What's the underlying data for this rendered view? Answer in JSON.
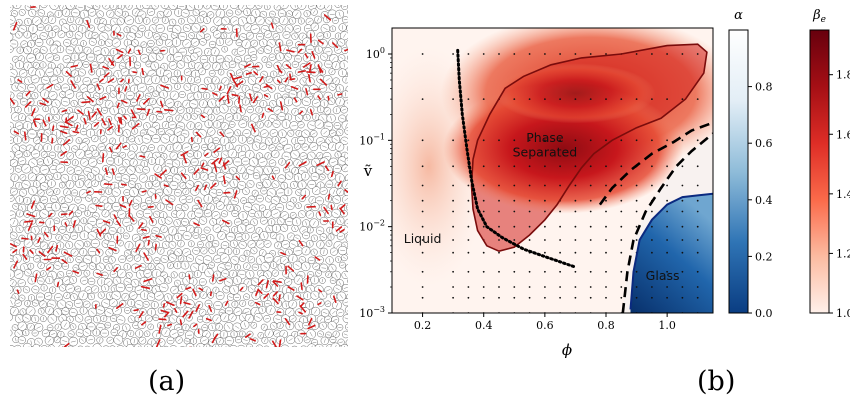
{
  "panel_labels": {
    "a": "(a)",
    "b": "(b)"
  },
  "chart_data": [
    {
      "type": "scatter",
      "panel": "(a)",
      "title": "",
      "description_kind": "particle-packing-snapshot",
      "colors": {
        "particle_edge": "#555555",
        "particle_fill": "#ffffff",
        "bond": "#d11a1a"
      }
    },
    {
      "type": "heatmap",
      "panel": "(b)",
      "title": "",
      "xlabel": "ϕ",
      "ylabel": "ṽ",
      "xlim": [
        0.1,
        1.15
      ],
      "ylim": [
        0.001,
        2
      ],
      "yscale": "log",
      "x_ticks": [
        {
          "value": 0.2,
          "label": "0.2"
        },
        {
          "value": 0.4,
          "label": "0.4"
        },
        {
          "value": 0.6,
          "label": "0.6"
        },
        {
          "value": 0.8,
          "label": "0.8"
        },
        {
          "value": 1.0,
          "label": "1.0"
        }
      ],
      "y_ticks": [
        {
          "value": 0.001,
          "base": "10",
          "exp": "−3"
        },
        {
          "value": 0.01,
          "base": "10",
          "exp": "−2"
        },
        {
          "value": 0.1,
          "base": "10",
          "exp": "−1"
        },
        {
          "value": 1,
          "base": "10",
          "exp": "0"
        }
      ],
      "regions": [
        {
          "label_lines": [
            "Phase",
            "Separated"
          ],
          "phi": 0.6,
          "v": 0.095
        },
        {
          "label_lines": [
            "Liquid"
          ],
          "phi": 0.2,
          "v": 0.0065
        },
        {
          "label_lines": [
            "Glass"
          ],
          "phi": 0.985,
          "v": 0.0024
        }
      ],
      "phase_separated_boundary": [
        [
          0.365,
          0.06
        ],
        [
          0.38,
          0.1
        ],
        [
          0.42,
          0.2
        ],
        [
          0.47,
          0.4
        ],
        [
          0.53,
          0.55
        ],
        [
          0.62,
          0.75
        ],
        [
          0.72,
          0.9
        ],
        [
          0.85,
          1.0
        ],
        [
          1.0,
          1.25
        ],
        [
          1.1,
          1.3
        ],
        [
          1.13,
          1.05
        ],
        [
          1.12,
          0.6
        ],
        [
          1.06,
          0.3
        ],
        [
          0.98,
          0.18
        ],
        [
          0.9,
          0.14
        ],
        [
          0.82,
          0.1
        ],
        [
          0.76,
          0.07
        ],
        [
          0.72,
          0.048
        ],
        [
          0.68,
          0.03
        ],
        [
          0.64,
          0.018
        ],
        [
          0.6,
          0.012
        ],
        [
          0.55,
          0.008
        ],
        [
          0.5,
          0.0058
        ],
        [
          0.45,
          0.0052
        ],
        [
          0.41,
          0.006
        ],
        [
          0.38,
          0.009
        ],
        [
          0.365,
          0.016
        ],
        [
          0.36,
          0.03
        ],
        [
          0.365,
          0.06
        ]
      ],
      "glass_boundary": [
        [
          0.88,
          0.0011
        ],
        [
          0.89,
          0.003
        ],
        [
          0.91,
          0.007
        ],
        [
          0.95,
          0.012
        ],
        [
          1.0,
          0.018
        ],
        [
          1.05,
          0.022
        ],
        [
          1.1,
          0.023
        ],
        [
          1.15,
          0.024
        ]
      ],
      "dashed_boundary": [
        [
          0.855,
          0.001
        ],
        [
          0.87,
          0.003
        ],
        [
          0.89,
          0.007
        ],
        [
          0.93,
          0.015
        ],
        [
          0.98,
          0.028
        ],
        [
          1.03,
          0.05
        ],
        [
          1.08,
          0.075
        ],
        [
          1.15,
          0.12
        ]
      ],
      "dashed_boundary_upper": [
        [
          0.78,
          0.018
        ],
        [
          0.82,
          0.028
        ],
        [
          0.88,
          0.045
        ],
        [
          0.95,
          0.07
        ],
        [
          1.02,
          0.095
        ],
        [
          1.08,
          0.13
        ],
        [
          1.15,
          0.16
        ]
      ],
      "dotted_boundary": [
        [
          0.315,
          1.1
        ],
        [
          0.32,
          0.5
        ],
        [
          0.33,
          0.2
        ],
        [
          0.345,
          0.08
        ],
        [
          0.36,
          0.035
        ],
        [
          0.38,
          0.016
        ],
        [
          0.41,
          0.01
        ],
        [
          0.46,
          0.0075
        ],
        [
          0.53,
          0.0055
        ],
        [
          0.6,
          0.0045
        ],
        [
          0.66,
          0.0038
        ],
        [
          0.7,
          0.0034
        ]
      ],
      "simulation_points": {
        "phi": [
          0.2,
          0.3,
          0.35,
          0.4,
          0.45,
          0.5,
          0.55,
          0.6,
          0.65,
          0.7,
          0.75,
          0.8,
          0.85,
          0.9,
          0.95,
          1.0,
          1.05,
          1.1
        ],
        "v": [
          1.0,
          0.3,
          0.1,
          0.05,
          0.03,
          0.02,
          0.015,
          0.01,
          0.007,
          0.005,
          0.003,
          0.002,
          0.0015,
          0.001
        ]
      },
      "colorbars": [
        {
          "name": "alpha",
          "label": "α",
          "range": [
            0.0,
            1.0
          ],
          "colors": [
            "#0a3d82",
            "#2f74b5",
            "#8fbcd9",
            "#e3eef6",
            "#ffffff"
          ],
          "ticks": [
            {
              "value": 0.0,
              "label": "0.0"
            },
            {
              "value": 0.2,
              "label": "0.2"
            },
            {
              "value": 0.4,
              "label": "0.4"
            },
            {
              "value": 0.6,
              "label": "0.6"
            },
            {
              "value": 0.8,
              "label": "0.8"
            }
          ]
        },
        {
          "name": "beta",
          "label": "β",
          "label_sub": "e",
          "range": [
            1.0,
            1.95
          ],
          "colors": [
            "#fff0ea",
            "#fcbba1",
            "#fb6a4a",
            "#de2d26",
            "#a50f15",
            "#67000d"
          ],
          "ticks": [
            {
              "value": 1.0,
              "label": "1.0"
            },
            {
              "value": 1.2,
              "label": "1.2"
            },
            {
              "value": 1.4,
              "label": "1.4"
            },
            {
              "value": 1.6,
              "label": "1.6"
            },
            {
              "value": 1.8,
              "label": "1.8"
            }
          ]
        }
      ]
    }
  ]
}
